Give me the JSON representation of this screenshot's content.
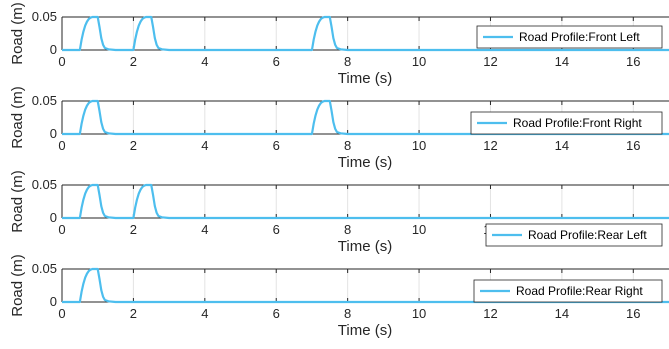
{
  "chart_data": [
    {
      "type": "line",
      "xlabel": "Time (s)",
      "ylabel": "Road (m)",
      "xlim": [
        0,
        17
      ],
      "ylim": [
        0,
        0.05
      ],
      "xticks": [
        0,
        2,
        4,
        6,
        8,
        10,
        12,
        14,
        16
      ],
      "yticks": [
        0,
        0.05
      ],
      "grid": true,
      "legend": "right",
      "series": [
        {
          "name": "Road Profile:Front Left",
          "color": "#4dbeee",
          "x": [
            0,
            0.5,
            0.55,
            0.6,
            0.65,
            0.7,
            0.75,
            0.8,
            0.85,
            0.9,
            1.0,
            1.05,
            1.1,
            1.15,
            1.2,
            1.3,
            1.5,
            2.0,
            2.05,
            2.1,
            2.15,
            2.2,
            2.25,
            2.3,
            2.35,
            2.4,
            2.5,
            2.55,
            2.6,
            2.65,
            2.7,
            2.8,
            3.0,
            7.0,
            7.05,
            7.1,
            7.15,
            7.2,
            7.25,
            7.3,
            7.35,
            7.4,
            7.5,
            7.55,
            7.6,
            7.65,
            7.7,
            7.8,
            8.0,
            17
          ],
          "y": [
            0,
            0,
            0.016,
            0.028,
            0.037,
            0.043,
            0.047,
            0.049,
            0.05,
            0.05,
            0.05,
            0.035,
            0.018,
            0.008,
            0.003,
            0.001,
            0,
            0,
            0.016,
            0.028,
            0.037,
            0.043,
            0.047,
            0.049,
            0.05,
            0.05,
            0.05,
            0.035,
            0.018,
            0.008,
            0.003,
            0.001,
            0,
            0,
            0.016,
            0.028,
            0.037,
            0.043,
            0.047,
            0.049,
            0.05,
            0.05,
            0.05,
            0.035,
            0.018,
            0.008,
            0.003,
            0.001,
            0,
            0
          ]
        }
      ]
    },
    {
      "type": "line",
      "xlabel": "Time (s)",
      "ylabel": "Road (m)",
      "xlim": [
        0,
        17
      ],
      "ylim": [
        0,
        0.05
      ],
      "xticks": [
        0,
        2,
        4,
        6,
        8,
        10,
        12,
        14,
        16
      ],
      "yticks": [
        0,
        0.05
      ],
      "grid": true,
      "legend": "bottom-right",
      "series": [
        {
          "name": "Road Profile:Front Right",
          "color": "#4dbeee",
          "x": [
            0,
            0.5,
            0.55,
            0.6,
            0.65,
            0.7,
            0.75,
            0.8,
            0.85,
            0.9,
            1.0,
            1.05,
            1.1,
            1.15,
            1.2,
            1.3,
            1.5,
            7.0,
            7.05,
            7.1,
            7.15,
            7.2,
            7.25,
            7.3,
            7.35,
            7.4,
            7.5,
            7.55,
            7.6,
            7.65,
            7.7,
            7.8,
            8.0,
            17
          ],
          "y": [
            0,
            0,
            0.016,
            0.028,
            0.037,
            0.043,
            0.047,
            0.049,
            0.05,
            0.05,
            0.05,
            0.035,
            0.018,
            0.008,
            0.003,
            0.001,
            0,
            0,
            0.016,
            0.028,
            0.037,
            0.043,
            0.047,
            0.049,
            0.05,
            0.05,
            0.05,
            0.035,
            0.018,
            0.008,
            0.003,
            0.001,
            0,
            0
          ]
        }
      ]
    },
    {
      "type": "line",
      "xlabel": "Time (s)",
      "ylabel": "Road (m)",
      "xlim": [
        0,
        17
      ],
      "ylim": [
        0,
        0.05
      ],
      "xticks": [
        0,
        2,
        4,
        6,
        8,
        10,
        12,
        14,
        16
      ],
      "yticks": [
        0,
        0.05
      ],
      "grid": true,
      "legend": "right",
      "series": [
        {
          "name": "Road Profile:Rear Left",
          "color": "#4dbeee",
          "x": [
            0,
            0.5,
            0.55,
            0.6,
            0.65,
            0.7,
            0.75,
            0.8,
            0.85,
            0.9,
            1.0,
            1.05,
            1.1,
            1.15,
            1.2,
            1.3,
            1.5,
            2.0,
            2.05,
            2.1,
            2.15,
            2.2,
            2.25,
            2.3,
            2.35,
            2.4,
            2.5,
            2.55,
            2.6,
            2.65,
            2.7,
            2.8,
            3.0,
            17
          ],
          "y": [
            0,
            0,
            0.016,
            0.028,
            0.037,
            0.043,
            0.047,
            0.049,
            0.05,
            0.05,
            0.05,
            0.035,
            0.018,
            0.008,
            0.003,
            0.001,
            0,
            0,
            0.016,
            0.028,
            0.037,
            0.043,
            0.047,
            0.049,
            0.05,
            0.05,
            0.05,
            0.035,
            0.018,
            0.008,
            0.003,
            0.001,
            0,
            0
          ]
        }
      ]
    },
    {
      "type": "line",
      "xlabel": "Time (s)",
      "ylabel": "Road (m)",
      "xlim": [
        0,
        17
      ],
      "ylim": [
        0,
        0.05
      ],
      "xticks": [
        0,
        2,
        4,
        6,
        8,
        10,
        12,
        14,
        16
      ],
      "yticks": [
        0,
        0.05
      ],
      "grid": true,
      "legend": "bottom-right",
      "series": [
        {
          "name": "Road Profile:Rear Right",
          "color": "#4dbeee",
          "x": [
            0,
            0.5,
            0.55,
            0.6,
            0.65,
            0.7,
            0.75,
            0.8,
            0.85,
            0.9,
            1.0,
            1.05,
            1.1,
            1.15,
            1.2,
            1.3,
            1.5,
            17
          ],
          "y": [
            0,
            0,
            0.016,
            0.028,
            0.037,
            0.043,
            0.047,
            0.049,
            0.05,
            0.05,
            0.05,
            0.035,
            0.018,
            0.008,
            0.003,
            0.001,
            0,
            0
          ]
        }
      ]
    }
  ]
}
